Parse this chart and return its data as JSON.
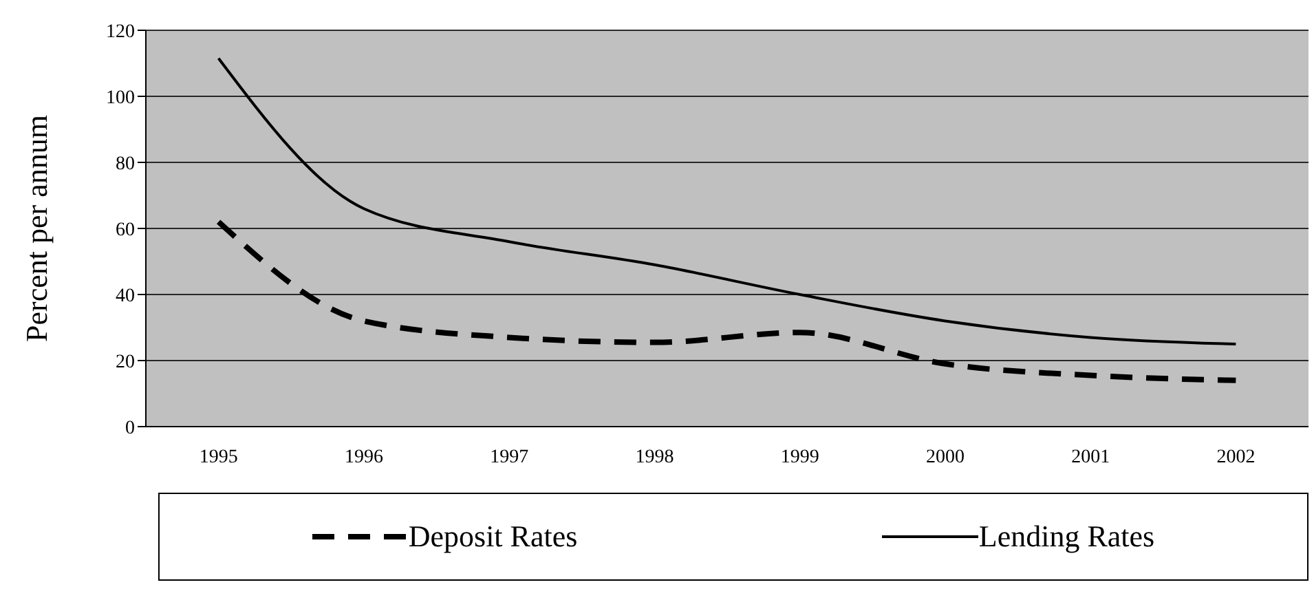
{
  "chart_data": {
    "type": "line",
    "ylabel": "Percent per annum",
    "categories": [
      "1995",
      "1996",
      "1997",
      "1998",
      "1999",
      "2000",
      "2001",
      "2002"
    ],
    "series": [
      {
        "name": "Deposit Rates",
        "color": "#000000",
        "line_style": "dashed",
        "values": [
          62,
          32,
          27,
          25.5,
          28.5,
          19,
          15.5,
          14
        ]
      },
      {
        "name": "Lending Rates",
        "color": "#000000",
        "line_style": "solid",
        "values": [
          111.5,
          66,
          56,
          49,
          40,
          32,
          27,
          25
        ]
      }
    ],
    "ylim": [
      0,
      120
    ],
    "yticks": [
      0,
      20,
      40,
      60,
      80,
      100,
      120
    ],
    "grid": "y",
    "legend": "bottom",
    "marker": "none"
  }
}
